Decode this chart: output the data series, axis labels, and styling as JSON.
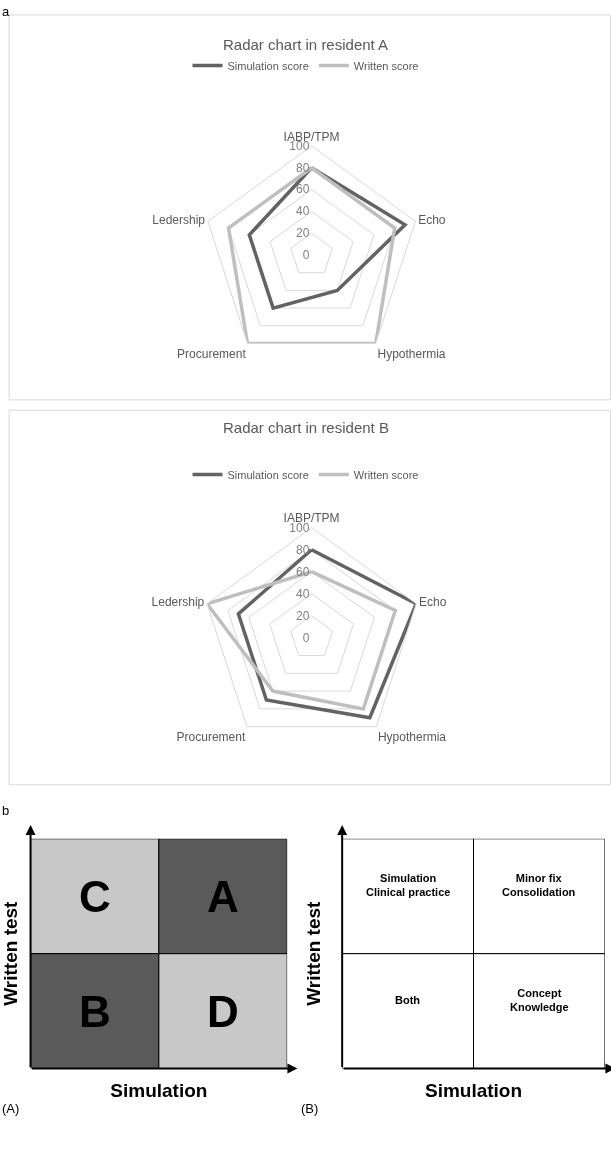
{
  "chart_data": [
    {
      "type": "radar",
      "title": "Radar chart in resident A",
      "annotations": [
        "a"
      ],
      "categories": [
        "IABP/TPM",
        "Echo",
        "Hypothermia",
        "Procurement",
        "Ledership"
      ],
      "series": [
        {
          "name": "Simulation score",
          "color": "#636363",
          "values": [
            80,
            90,
            40,
            60,
            60
          ]
        },
        {
          "name": "Written score",
          "color": "#bfbfbf",
          "values": [
            80,
            80,
            100,
            100,
            80
          ]
        }
      ],
      "ylim": [
        0,
        100
      ],
      "yticks": [
        0,
        20,
        40,
        60,
        80,
        100
      ],
      "grid": true,
      "legend": "top"
    },
    {
      "type": "radar",
      "title": "Radar chart in resident B",
      "categories": [
        "IABP/TPM",
        "Echo",
        "Hypothermia",
        "Procurement",
        "Ledership"
      ],
      "series": [
        {
          "name": "Simulation score",
          "color": "#636363",
          "values": [
            80,
            100,
            90,
            70,
            70
          ]
        },
        {
          "name": "Written score",
          "color": "#bfbfbf",
          "values": [
            60,
            80,
            80,
            60,
            100
          ]
        }
      ],
      "ylim": [
        0,
        100
      ],
      "yticks": [
        0,
        20,
        40,
        60,
        80,
        100
      ],
      "grid": true,
      "legend": "top"
    },
    {
      "type": "other",
      "annotations": [
        "b",
        "(A)"
      ],
      "xlabel": "Simulation",
      "ylabel": "Written test",
      "categories": [
        "C",
        "A",
        "B",
        "D"
      ],
      "colors": [
        "#c8c8c8",
        "#5a5a5a",
        "#5a5a5a",
        "#c8c8c8"
      ]
    },
    {
      "type": "other",
      "annotations": [
        "(B)"
      ],
      "xlabel": "Simulation",
      "ylabel": "Written test",
      "categories": [
        "Simulation\nClinical practice",
        "Minor fix\nConsolidation",
        "Both",
        "Concept\nKnowledge"
      ],
      "colors": [
        "#ffffff",
        "#ffffff",
        "#ffffff",
        "#ffffff"
      ]
    }
  ]
}
